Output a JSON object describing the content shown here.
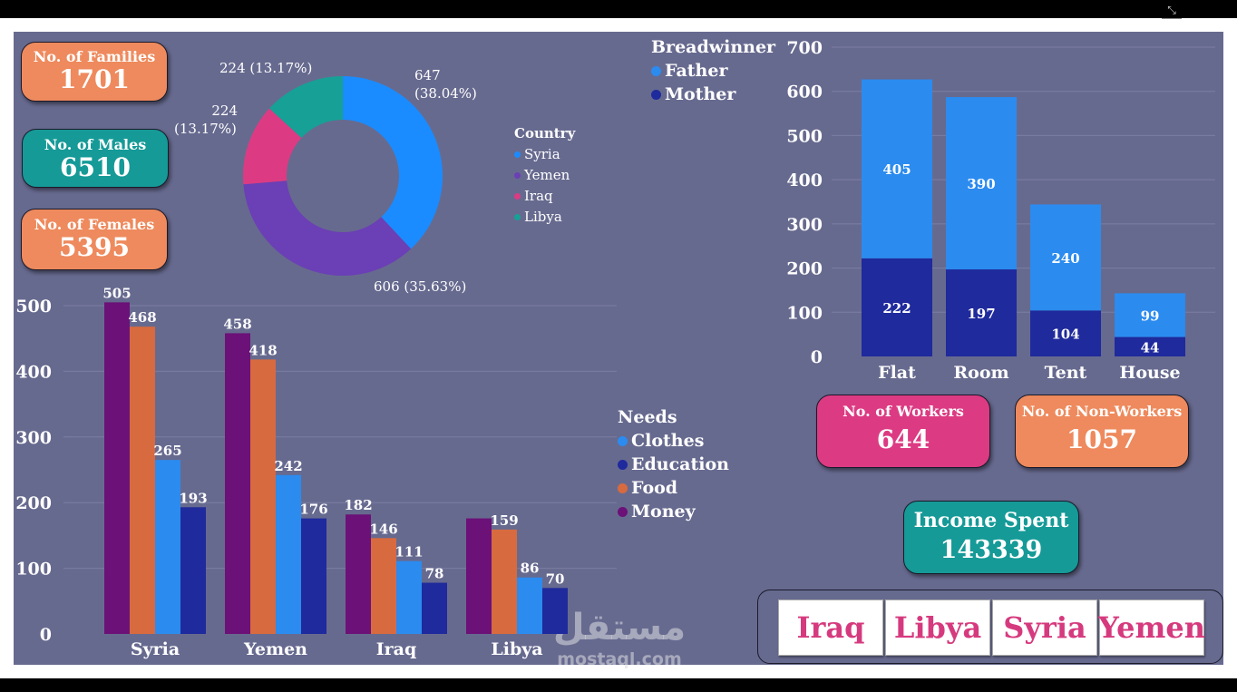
{
  "kpis": {
    "families": {
      "label": "No. of Families",
      "value": "1701"
    },
    "males": {
      "label": "No. of Males",
      "value": "6510"
    },
    "females": {
      "label": "No. of Females",
      "value": "5395"
    },
    "workers": {
      "label": "No. of Workers",
      "value": "644"
    },
    "non_workers": {
      "label": "No. of Non-Workers",
      "value": "1057"
    },
    "income": {
      "label": "Income Spent",
      "value": "143339"
    }
  },
  "slicer": {
    "items": [
      "Iraq",
      "Libya",
      "Syria",
      "Yemen"
    ]
  },
  "watermark": {
    "arabic": "مستقل",
    "latin": "mostaql.com"
  },
  "colors": {
    "background": "#676a8f",
    "orange": "#ee8a5d",
    "teal": "#159a97",
    "pink": "#dc3b83",
    "syria": "#1a8cff",
    "yemen": "#6b3fb5",
    "iraq": "#dc3b83",
    "libya": "#17a096",
    "father": "#2b8bef",
    "mother": "#1f2a9c",
    "clothes": "#2b8bef",
    "education": "#1f2a9c",
    "food": "#d86a3f",
    "money": "#6b1178"
  },
  "chart_data": [
    {
      "type": "pie",
      "subtype": "donut",
      "legend_title": "Country",
      "legend_position": "right",
      "labels": [
        "Syria",
        "Yemen",
        "Iraq",
        "Libya"
      ],
      "values": [
        647,
        606,
        224,
        224
      ],
      "data_labels": [
        "647 (38.04%)",
        "606 (35.63%)",
        "224 (13.17%)",
        "224 (13.17%)"
      ],
      "colors": [
        "#1a8cff",
        "#6b3fb5",
        "#dc3b83",
        "#17a096"
      ]
    },
    {
      "type": "bar",
      "stacked": true,
      "legend_title": "Breadwinner",
      "legend_position": "top-left",
      "categories": [
        "Flat",
        "Room",
        "Tent",
        "House"
      ],
      "series": [
        {
          "name": "Mother",
          "values": [
            222,
            197,
            104,
            44
          ],
          "color": "#1f2a9c"
        },
        {
          "name": "Father",
          "values": [
            405,
            390,
            240,
            99
          ],
          "color": "#2b8bef"
        }
      ],
      "yticks": [
        0,
        100,
        200,
        300,
        400,
        500,
        600,
        700
      ],
      "ylim": [
        0,
        700
      ],
      "grid": true
    },
    {
      "type": "bar",
      "stacked": false,
      "legend_title": "Needs",
      "legend_position": "right",
      "categories": [
        "Syria",
        "Yemen",
        "Iraq",
        "Libya"
      ],
      "series": [
        {
          "name": "Money",
          "values": [
            505,
            458,
            182,
            176
          ],
          "labels": [
            "505",
            "458",
            "182",
            ""
          ],
          "color": "#6b1178"
        },
        {
          "name": "Food",
          "values": [
            468,
            418,
            146,
            159
          ],
          "labels": [
            "468",
            "418",
            "146",
            "159"
          ],
          "color": "#d86a3f"
        },
        {
          "name": "Clothes",
          "values": [
            265,
            242,
            111,
            86
          ],
          "labels": [
            "265",
            "242",
            "111",
            "86"
          ],
          "color": "#2b8bef"
        },
        {
          "name": "Education",
          "values": [
            193,
            176,
            78,
            70
          ],
          "labels": [
            "193",
            "176",
            "78",
            "70"
          ],
          "color": "#1f2a9c"
        }
      ],
      "legend_order": [
        "Clothes",
        "Education",
        "Food",
        "Money"
      ],
      "yticks": [
        0,
        100,
        200,
        300,
        400,
        500
      ],
      "ylim": [
        0,
        500
      ],
      "grid": true
    }
  ]
}
